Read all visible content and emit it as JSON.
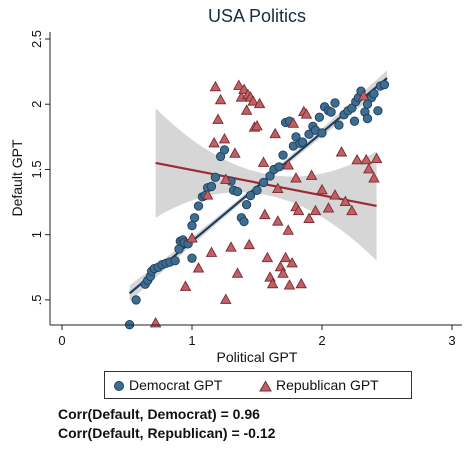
{
  "chart_data": {
    "type": "scatter",
    "title": "USA Politics",
    "xlabel": "Political GPT",
    "ylabel": "Default GPT",
    "xlim": [
      0,
      3
    ],
    "ylim": [
      0.3,
      2.5
    ],
    "xticks": [
      "0",
      "1",
      "2",
      "3"
    ],
    "yticks": [
      ".5",
      "1",
      "1.5",
      "2",
      "2.5"
    ],
    "grid": false,
    "legend_position": "bottom",
    "series": [
      {
        "name": "Democrat GPT",
        "marker": "circle",
        "color": "#3d6e8f",
        "points": [
          [
            0.52,
            0.31
          ],
          [
            0.57,
            0.5
          ],
          [
            0.64,
            0.62
          ],
          [
            0.66,
            0.65
          ],
          [
            0.68,
            0.68
          ],
          [
            0.69,
            0.72
          ],
          [
            0.71,
            0.74
          ],
          [
            0.74,
            0.75
          ],
          [
            0.77,
            0.77
          ],
          [
            0.8,
            0.78
          ],
          [
            0.83,
            0.79
          ],
          [
            0.87,
            0.8
          ],
          [
            0.9,
            0.89
          ],
          [
            0.91,
            0.95
          ],
          [
            0.93,
            0.96
          ],
          [
            0.94,
            0.94
          ],
          [
            0.97,
            0.93
          ],
          [
            1.0,
            1.07
          ],
          [
            1.02,
            1.13
          ],
          [
            1.05,
            1.22
          ],
          [
            1.08,
            1.29
          ],
          [
            1.1,
            1.3
          ],
          [
            1.12,
            1.36
          ],
          [
            1.15,
            1.37
          ],
          [
            1.18,
            1.44
          ],
          [
            1.22,
            1.6
          ],
          [
            1.25,
            1.65
          ],
          [
            1.3,
            1.41
          ],
          [
            1.32,
            1.34
          ],
          [
            1.35,
            1.33
          ],
          [
            1.38,
            1.13
          ],
          [
            1.4,
            1.1
          ],
          [
            1.42,
            1.23
          ],
          [
            1.45,
            1.3
          ],
          [
            1.5,
            1.34
          ],
          [
            1.55,
            1.4
          ],
          [
            1.6,
            1.45
          ],
          [
            1.63,
            1.5
          ],
          [
            1.67,
            1.52
          ],
          [
            1.7,
            1.61
          ],
          [
            1.72,
            1.86
          ],
          [
            1.75,
            1.87
          ],
          [
            1.78,
            1.68
          ],
          [
            1.8,
            1.75
          ],
          [
            1.83,
            1.7
          ],
          [
            1.85,
            1.71
          ],
          [
            1.9,
            1.77
          ],
          [
            1.93,
            1.83
          ],
          [
            1.95,
            1.8
          ],
          [
            1.98,
            1.9
          ],
          [
            2.0,
            1.78
          ],
          [
            2.02,
            1.98
          ],
          [
            2.05,
            1.95
          ],
          [
            2.07,
            1.94
          ],
          [
            2.1,
            2.01
          ],
          [
            2.13,
            1.84
          ],
          [
            2.17,
            1.92
          ],
          [
            2.2,
            1.95
          ],
          [
            2.23,
            1.97
          ],
          [
            2.26,
            2.02
          ],
          [
            2.28,
            2.05
          ],
          [
            2.3,
            2.1
          ],
          [
            2.33,
            1.94
          ],
          [
            2.35,
            1.89
          ],
          [
            2.38,
            2.05
          ],
          [
            2.4,
            2.08
          ],
          [
            2.43,
            1.95
          ],
          [
            2.45,
            2.14
          ],
          [
            2.48,
            2.15
          ],
          [
            2.35,
            2.0
          ],
          [
            2.25,
            1.87
          ],
          [
            1.0,
            0.82
          ]
        ],
        "fit": {
          "x": [
            0.52,
            2.5
          ],
          "y": [
            0.55,
            2.2
          ],
          "color": "#1f3d5c"
        }
      },
      {
        "name": "Republican GPT",
        "marker": "triangle",
        "color": "#c06065",
        "points": [
          [
            0.72,
            0.32
          ],
          [
            0.95,
            0.6
          ],
          [
            1.0,
            0.97
          ],
          [
            1.05,
            0.74
          ],
          [
            1.12,
            1.3
          ],
          [
            1.15,
            0.86
          ],
          [
            1.17,
            1.7
          ],
          [
            1.18,
            2.13
          ],
          [
            1.2,
            1.88
          ],
          [
            1.22,
            2.03
          ],
          [
            1.25,
            1.73
          ],
          [
            1.26,
            0.5
          ],
          [
            1.3,
            0.9
          ],
          [
            1.35,
            0.7
          ],
          [
            1.36,
            2.14
          ],
          [
            1.38,
            2.05
          ],
          [
            1.4,
            2.11
          ],
          [
            1.42,
            1.95
          ],
          [
            1.43,
            2.07
          ],
          [
            1.45,
            2.05
          ],
          [
            1.47,
            2.02
          ],
          [
            1.48,
            1.82
          ],
          [
            1.5,
            1.83
          ],
          [
            1.52,
            2.0
          ],
          [
            1.55,
            1.55
          ],
          [
            1.58,
            0.82
          ],
          [
            1.6,
            0.67
          ],
          [
            1.62,
            0.62
          ],
          [
            1.64,
            1.77
          ],
          [
            1.66,
            1.35
          ],
          [
            1.68,
            0.75
          ],
          [
            1.7,
            0.7
          ],
          [
            1.72,
            0.82
          ],
          [
            1.74,
            1.53
          ],
          [
            1.75,
            0.61
          ],
          [
            1.77,
            0.78
          ],
          [
            1.78,
            1.85
          ],
          [
            1.8,
            1.21
          ],
          [
            1.82,
            1.18
          ],
          [
            1.84,
            0.62
          ],
          [
            1.86,
            1.94
          ],
          [
            1.88,
            1.92
          ],
          [
            1.9,
            1.12
          ],
          [
            1.95,
            1.18
          ],
          [
            2.0,
            1.34
          ],
          [
            2.05,
            1.2
          ],
          [
            2.1,
            1.3
          ],
          [
            2.15,
            1.63
          ],
          [
            2.18,
            1.25
          ],
          [
            2.23,
            1.18
          ],
          [
            2.27,
            1.57
          ],
          [
            2.32,
            2.06
          ],
          [
            2.34,
            1.57
          ],
          [
            2.36,
            1.5
          ],
          [
            2.4,
            1.43
          ],
          [
            2.42,
            1.58
          ],
          [
            1.26,
            1.42
          ],
          [
            1.33,
            1.62
          ],
          [
            1.56,
            1.15
          ],
          [
            1.92,
            1.45
          ],
          [
            1.66,
            1.1
          ],
          [
            1.74,
            1.03
          ],
          [
            1.44,
            0.92
          ],
          [
            1.8,
            1.43
          ]
        ],
        "fit": {
          "x": [
            0.72,
            2.42
          ],
          "y": [
            1.55,
            1.22
          ],
          "color": "#9b2c35"
        }
      }
    ]
  },
  "legend": [
    {
      "label": "Democrat GPT"
    },
    {
      "label": "Republican GPT"
    }
  ],
  "annotations": [
    "Corr(Default, Democrat) = 0.96",
    "Corr(Default, Republican) = -0.12"
  ]
}
